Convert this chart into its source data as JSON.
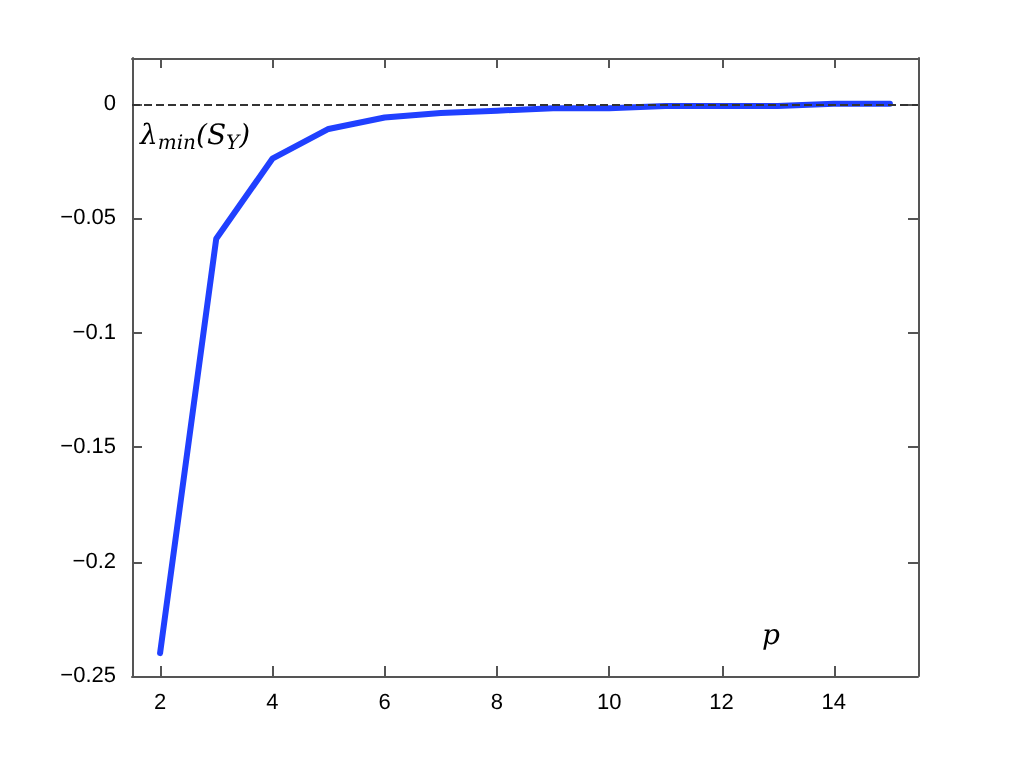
{
  "chart_data": {
    "type": "line",
    "xlabel": "p",
    "annotations": [
      "λ$_{min}$(S$_{Y}$)"
    ],
    "x": [
      2,
      3,
      4,
      5,
      6,
      7,
      8,
      9,
      10,
      11,
      12,
      13,
      14,
      15
    ],
    "series": [
      {
        "color": "#2040ff",
        "values": [
          -0.24,
          -0.059,
          -0.024,
          -0.011,
          -0.006,
          -0.004,
          -0.003,
          -0.002,
          -0.002,
          -0.001,
          -0.001,
          -0.001,
          0,
          0
        ]
      }
    ],
    "xlim": [
      1.5,
      15.5
    ],
    "xticks": [
      2,
      4,
      6,
      8,
      10,
      12,
      14
    ],
    "ylim": [
      -0.25,
      0.02
    ],
    "yticks": [
      -0.25,
      -0.2,
      -0.15,
      -0.1,
      -0.05,
      0
    ],
    "ref_lines": [
      {
        "axis": "y",
        "value": 0,
        "color": "#333333",
        "line_style": "dashed"
      }
    ],
    "marker": "none",
    "line_style": "solid"
  }
}
